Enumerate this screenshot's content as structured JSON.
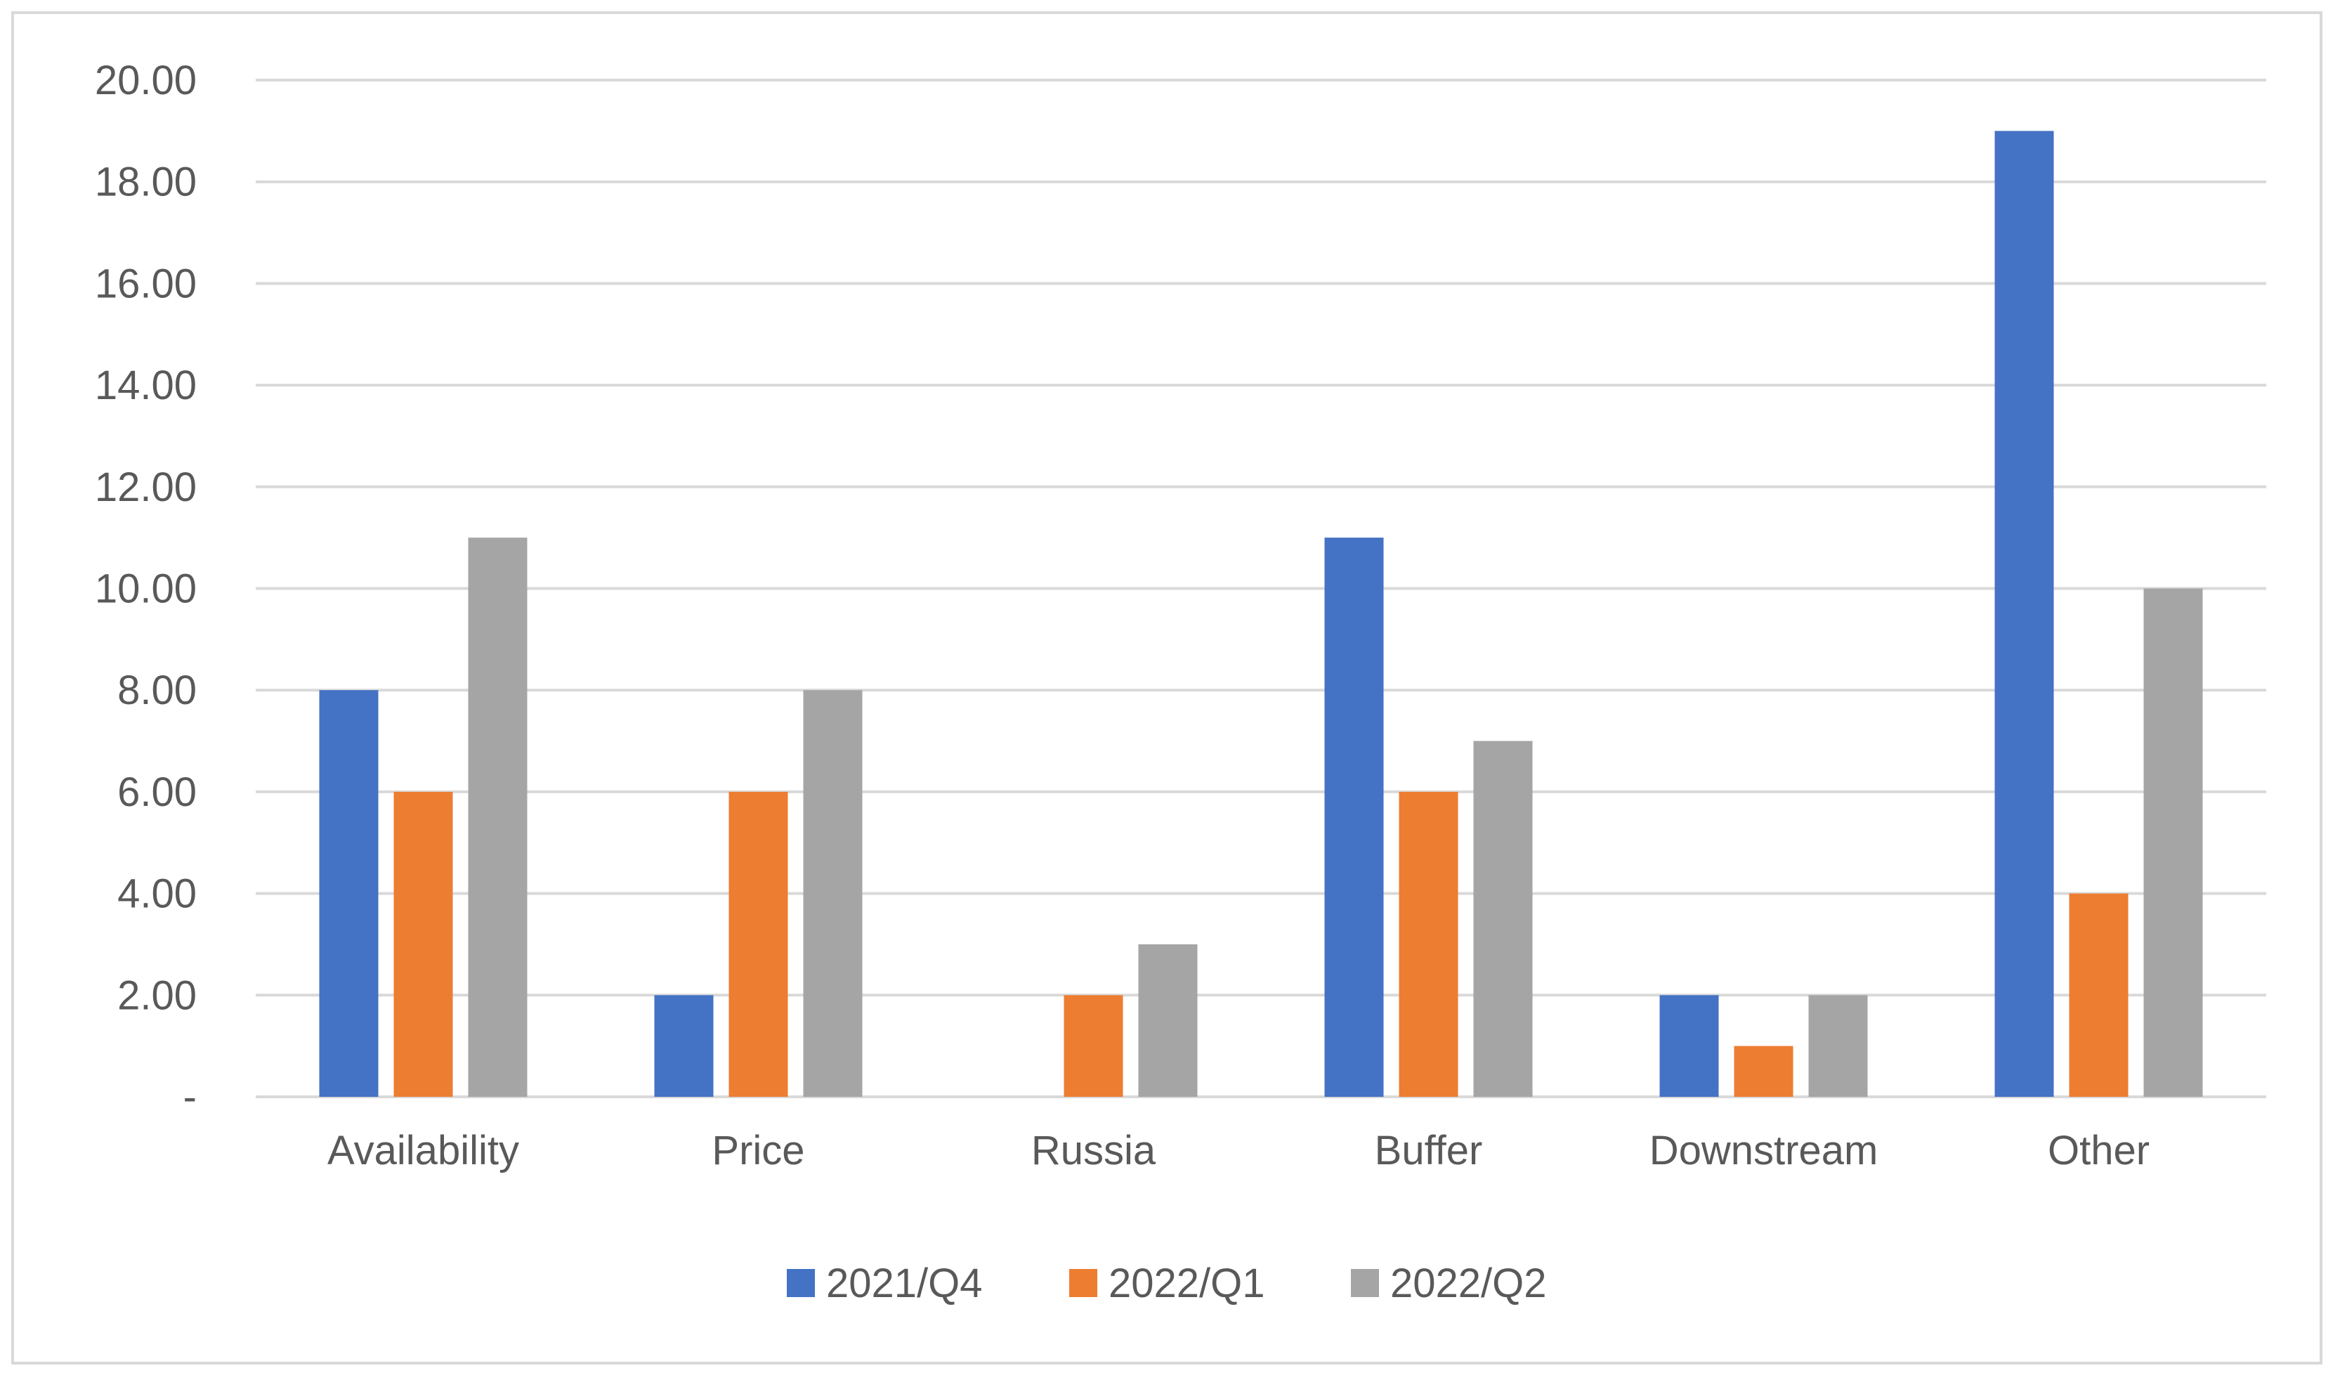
{
  "chart_data": {
    "type": "bar",
    "categories": [
      "Availability",
      "Price",
      "Russia",
      "Buffer",
      "Downstream",
      "Other"
    ],
    "series": [
      {
        "name": "2021/Q4",
        "color": "#4472c4",
        "values": [
          8,
          2,
          0,
          11,
          2,
          19
        ]
      },
      {
        "name": "2022/Q1",
        "color": "#ed7d31",
        "values": [
          6,
          6,
          2,
          6,
          1,
          4
        ]
      },
      {
        "name": "2022/Q2",
        "color": "#a5a5a5",
        "values": [
          11,
          8,
          3,
          7,
          2,
          10
        ]
      }
    ],
    "y_ticks": [
      {
        "value": 0,
        "label": "-"
      },
      {
        "value": 2,
        "label": "2.00"
      },
      {
        "value": 4,
        "label": "4.00"
      },
      {
        "value": 6,
        "label": "6.00"
      },
      {
        "value": 8,
        "label": "8.00"
      },
      {
        "value": 10,
        "label": "10.00"
      },
      {
        "value": 12,
        "label": "12.00"
      },
      {
        "value": 14,
        "label": "14.00"
      },
      {
        "value": 16,
        "label": "16.00"
      },
      {
        "value": 18,
        "label": "18.00"
      },
      {
        "value": 20,
        "label": "20.00"
      }
    ],
    "ylim": [
      0,
      20
    ],
    "grid": true,
    "legend_position": "bottom-center",
    "gridline_color": "#d9d9d9",
    "tick_label_color": "#595959"
  }
}
